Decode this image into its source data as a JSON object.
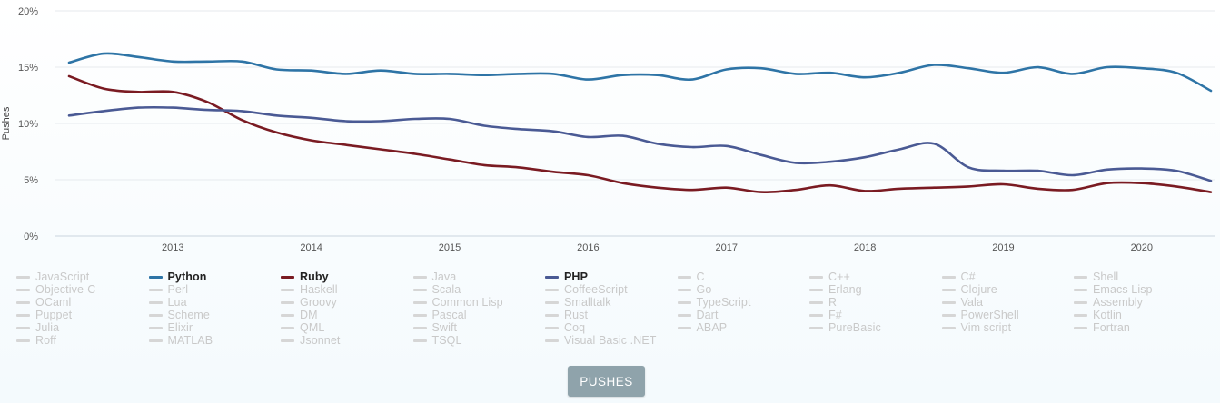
{
  "chart_data": {
    "type": "line",
    "ylabel": "Pushes",
    "y_ticks": [
      "0%",
      "5%",
      "10%",
      "15%",
      "20%"
    ],
    "ylim": [
      0,
      20
    ],
    "x_ticks": [
      "2013",
      "2014",
      "2015",
      "2016",
      "2017",
      "2018",
      "2019",
      "2020"
    ],
    "xlim": [
      2012.25,
      2020.5
    ],
    "grid": "horizontal",
    "series": [
      {
        "name": "Python",
        "color": "#2e74a6",
        "x": [
          2012.25,
          2012.5,
          2012.75,
          2013.0,
          2013.25,
          2013.5,
          2013.75,
          2014.0,
          2014.25,
          2014.5,
          2014.75,
          2015.0,
          2015.25,
          2015.5,
          2015.75,
          2016.0,
          2016.25,
          2016.5,
          2016.75,
          2017.0,
          2017.25,
          2017.5,
          2017.75,
          2018.0,
          2018.25,
          2018.5,
          2018.75,
          2019.0,
          2019.25,
          2019.5,
          2019.75,
          2020.0,
          2020.25,
          2020.5
        ],
        "y": [
          15.4,
          16.2,
          15.9,
          15.5,
          15.5,
          15.5,
          14.8,
          14.7,
          14.4,
          14.7,
          14.4,
          14.4,
          14.3,
          14.4,
          14.4,
          13.9,
          14.3,
          14.3,
          13.9,
          14.8,
          14.9,
          14.4,
          14.5,
          14.1,
          14.5,
          15.2,
          14.9,
          14.5,
          15.0,
          14.4,
          15.0,
          14.9,
          14.5,
          12.9
        ]
      },
      {
        "name": "Ruby",
        "color": "#7a1b22",
        "x": [
          2012.25,
          2012.5,
          2012.75,
          2013.0,
          2013.25,
          2013.5,
          2013.75,
          2014.0,
          2014.25,
          2014.5,
          2014.75,
          2015.0,
          2015.25,
          2015.5,
          2015.75,
          2016.0,
          2016.25,
          2016.5,
          2016.75,
          2017.0,
          2017.25,
          2017.5,
          2017.75,
          2018.0,
          2018.25,
          2018.5,
          2018.75,
          2019.0,
          2019.25,
          2019.5,
          2019.75,
          2020.0,
          2020.25,
          2020.5
        ],
        "y": [
          14.2,
          13.1,
          12.8,
          12.8,
          11.9,
          10.3,
          9.2,
          8.5,
          8.1,
          7.7,
          7.3,
          6.8,
          6.3,
          6.1,
          5.7,
          5.4,
          4.7,
          4.3,
          4.1,
          4.3,
          3.9,
          4.1,
          4.5,
          4.0,
          4.2,
          4.3,
          4.4,
          4.6,
          4.2,
          4.1,
          4.7,
          4.7,
          4.4,
          3.9
        ]
      },
      {
        "name": "PHP",
        "color": "#4a5a94",
        "x": [
          2012.25,
          2012.5,
          2012.75,
          2013.0,
          2013.25,
          2013.5,
          2013.75,
          2014.0,
          2014.25,
          2014.5,
          2014.75,
          2015.0,
          2015.25,
          2015.5,
          2015.75,
          2016.0,
          2016.25,
          2016.5,
          2016.75,
          2017.0,
          2017.25,
          2017.5,
          2017.75,
          2018.0,
          2018.25,
          2018.5,
          2018.75,
          2019.0,
          2019.25,
          2019.5,
          2019.75,
          2020.0,
          2020.25,
          2020.5
        ],
        "y": [
          10.7,
          11.1,
          11.4,
          11.4,
          11.2,
          11.1,
          10.7,
          10.5,
          10.2,
          10.2,
          10.4,
          10.4,
          9.8,
          9.5,
          9.3,
          8.8,
          8.9,
          8.2,
          7.9,
          8.0,
          7.2,
          6.5,
          6.6,
          7.0,
          7.7,
          8.2,
          6.1,
          5.8,
          5.8,
          5.4,
          5.9,
          6.0,
          5.8,
          4.9
        ]
      }
    ]
  },
  "legend": [
    {
      "label": "JavaScript",
      "active": false
    },
    {
      "label": "Python",
      "active": true,
      "color": "#2e74a6"
    },
    {
      "label": "Ruby",
      "active": true,
      "color": "#7a1b22"
    },
    {
      "label": "Java",
      "active": false
    },
    {
      "label": "PHP",
      "active": true,
      "color": "#4a5a94"
    },
    {
      "label": "C",
      "active": false
    },
    {
      "label": "C++",
      "active": false
    },
    {
      "label": "C#",
      "active": false
    },
    {
      "label": "Shell",
      "active": false
    },
    {
      "label": "Objective-C",
      "active": false
    },
    {
      "label": "Perl",
      "active": false
    },
    {
      "label": "Haskell",
      "active": false
    },
    {
      "label": "Scala",
      "active": false
    },
    {
      "label": "CoffeeScript",
      "active": false
    },
    {
      "label": "Go",
      "active": false
    },
    {
      "label": "Erlang",
      "active": false
    },
    {
      "label": "Clojure",
      "active": false
    },
    {
      "label": "Emacs Lisp",
      "active": false
    },
    {
      "label": "OCaml",
      "active": false
    },
    {
      "label": "Lua",
      "active": false
    },
    {
      "label": "Groovy",
      "active": false
    },
    {
      "label": "Common Lisp",
      "active": false
    },
    {
      "label": "Smalltalk",
      "active": false
    },
    {
      "label": "TypeScript",
      "active": false
    },
    {
      "label": "R",
      "active": false
    },
    {
      "label": "Vala",
      "active": false
    },
    {
      "label": "Assembly",
      "active": false
    },
    {
      "label": "Puppet",
      "active": false
    },
    {
      "label": "Scheme",
      "active": false
    },
    {
      "label": "DM",
      "active": false
    },
    {
      "label": "Pascal",
      "active": false
    },
    {
      "label": "Rust",
      "active": false
    },
    {
      "label": "Dart",
      "active": false
    },
    {
      "label": "F#",
      "active": false
    },
    {
      "label": "PowerShell",
      "active": false
    },
    {
      "label": "Kotlin",
      "active": false
    },
    {
      "label": "Julia",
      "active": false
    },
    {
      "label": "Elixir",
      "active": false
    },
    {
      "label": "QML",
      "active": false
    },
    {
      "label": "Swift",
      "active": false
    },
    {
      "label": "Coq",
      "active": false
    },
    {
      "label": "ABAP",
      "active": false
    },
    {
      "label": "PureBasic",
      "active": false
    },
    {
      "label": "Vim script",
      "active": false
    },
    {
      "label": "Fortran",
      "active": false
    },
    {
      "label": "Roff",
      "active": false
    },
    {
      "label": "MATLAB",
      "active": false
    },
    {
      "label": "Jsonnet",
      "active": false
    },
    {
      "label": "TSQL",
      "active": false
    },
    {
      "label": "Visual Basic .NET",
      "active": false
    }
  ],
  "button": {
    "label": "PUSHES"
  }
}
